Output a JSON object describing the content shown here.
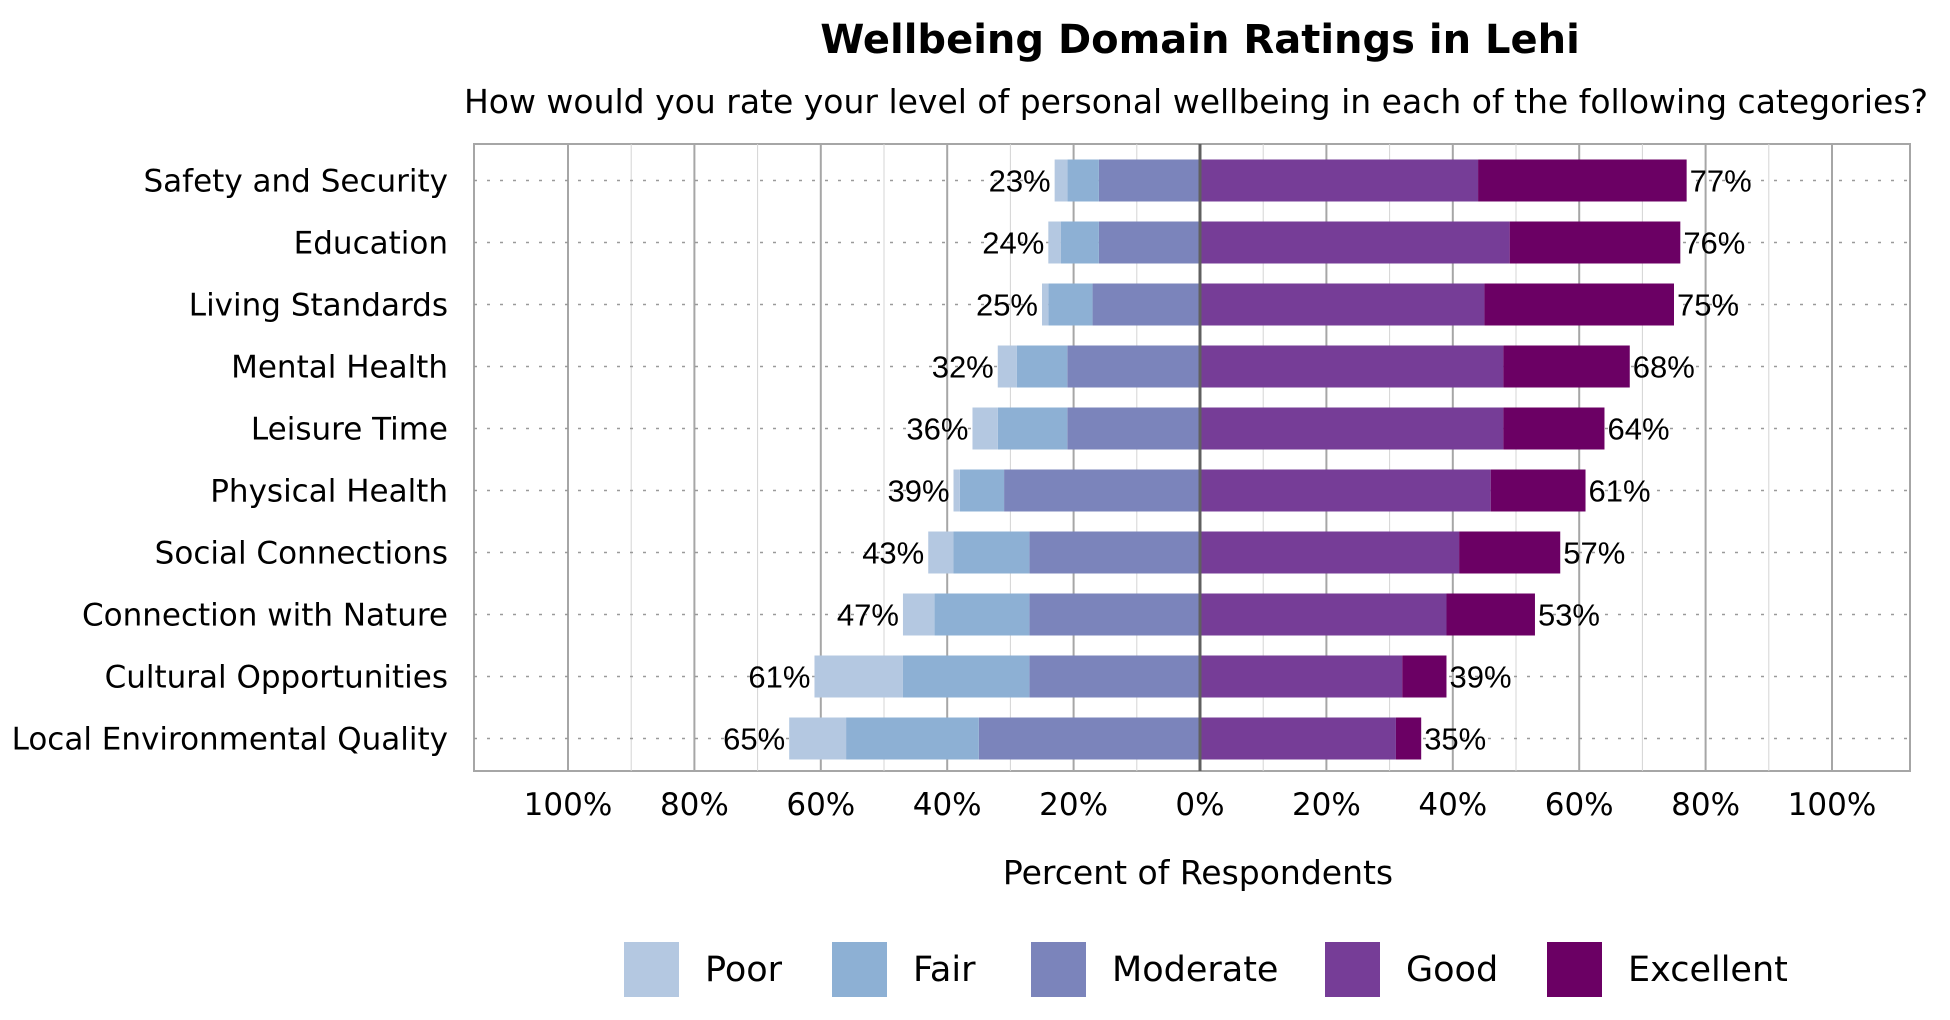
{
  "chart_data": {
    "type": "bar",
    "orientation": "horizontal-diverging",
    "title": "Wellbeing Domain Ratings in Lehi",
    "subtitle": "How would you rate your level of personal wellbeing in each of the following categories?",
    "xlabel": "Percent of Respondents",
    "xlim": [
      -100,
      100
    ],
    "x_tick_labels": [
      "100%",
      "80%",
      "60%",
      "40%",
      "20%",
      "0%",
      "20%",
      "40%",
      "60%",
      "80%",
      "100%"
    ],
    "grid": true,
    "legend_position": "bottom",
    "categories": [
      "Safety and Security",
      "Education",
      "Living Standards",
      "Mental Health",
      "Leisure Time",
      "Physical Health",
      "Social Connections",
      "Connection with Nature",
      "Cultural Opportunities",
      "Local Environmental Quality"
    ],
    "series": [
      {
        "name": "Poor",
        "side": "negative",
        "color": "#b4c8e1",
        "values": [
          2,
          2,
          1,
          3,
          4,
          1,
          4,
          5,
          14,
          9
        ]
      },
      {
        "name": "Fair",
        "side": "negative",
        "color": "#8db0d4",
        "values": [
          5,
          6,
          7,
          8,
          11,
          7,
          12,
          15,
          20,
          21
        ]
      },
      {
        "name": "Moderate",
        "side": "negative",
        "color": "#7b84bb",
        "values": [
          16,
          16,
          17,
          21,
          21,
          31,
          27,
          27,
          27,
          35
        ]
      },
      {
        "name": "Good",
        "side": "positive",
        "color": "#763d97",
        "values": [
          44,
          49,
          45,
          48,
          48,
          46,
          41,
          39,
          32,
          31
        ]
      },
      {
        "name": "Excellent",
        "side": "positive",
        "color": "#6b0064",
        "values": [
          33,
          27,
          30,
          20,
          16,
          15,
          16,
          14,
          7,
          4
        ]
      }
    ],
    "negative_totals": [
      "23%",
      "24%",
      "25%",
      "32%",
      "36%",
      "39%",
      "43%",
      "47%",
      "61%",
      "65%"
    ],
    "positive_totals": [
      "77%",
      "76%",
      "75%",
      "68%",
      "64%",
      "61%",
      "57%",
      "53%",
      "39%",
      "35%"
    ]
  }
}
